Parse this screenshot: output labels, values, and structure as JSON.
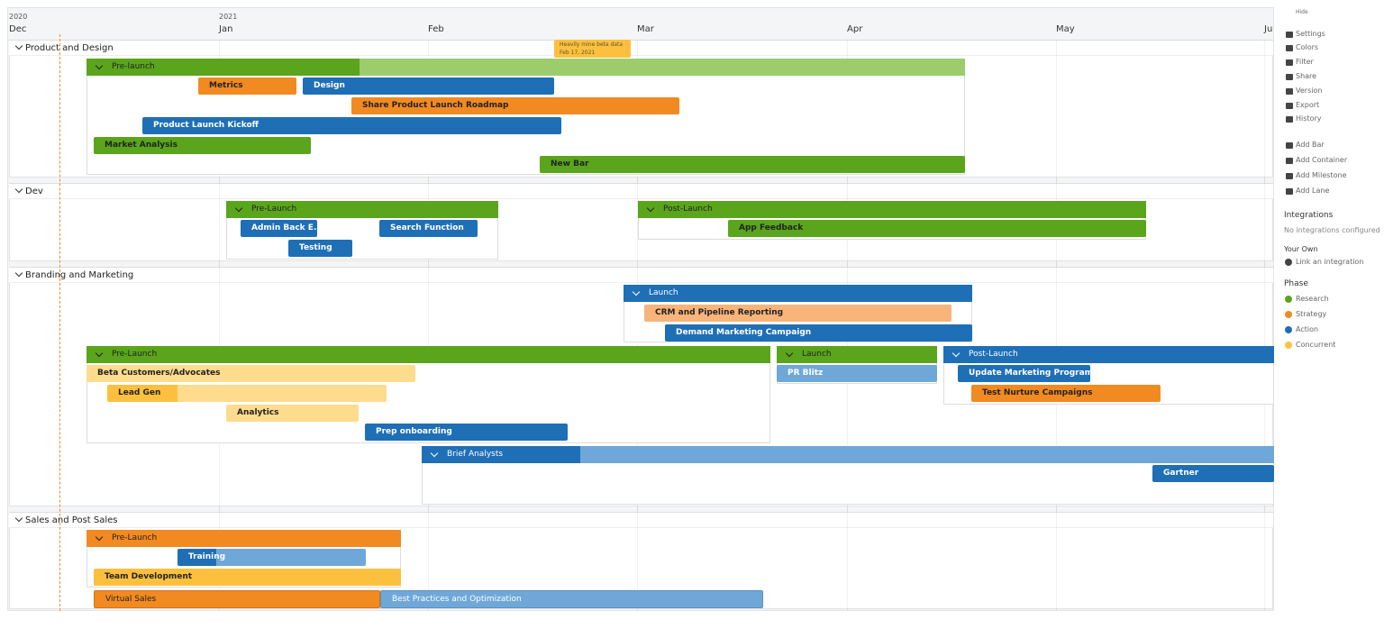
{
  "timeline": {
    "years": [
      "2020",
      "2021"
    ],
    "months": [
      "Dec",
      "Jan",
      "Feb",
      "Mar",
      "Apr",
      "May",
      "Ju"
    ]
  },
  "milestone": {
    "label": "Heavily mine beta data",
    "date": "Feb 17, 2021"
  },
  "lanes": [
    {
      "title": "Product and Design",
      "containers": [
        {
          "title": "Pre-launch",
          "bars": [
            "Metrics",
            "Design",
            "Share Product Launch Roadmap",
            "Product Launch Kickoff",
            "Market Analysis",
            "New Bar"
          ]
        }
      ],
      "bars": []
    },
    {
      "title": "Dev",
      "containers": [
        {
          "title": "Pre-Launch",
          "bars": [
            "Admin Back E...",
            "Search Function",
            "Testing"
          ]
        },
        {
          "title": "Post-Launch",
          "bars": [
            "App Feedback"
          ]
        }
      ],
      "bars": []
    },
    {
      "title": "Branding and Marketing",
      "containers": [
        {
          "title": "Launch",
          "bars": [
            "CRM and Pipeline Reporting",
            "Demand Marketing Campaign"
          ]
        },
        {
          "title": "Pre-Launch",
          "bars": [
            "Beta Customers/Advocates",
            "Lead Gen",
            "Analytics",
            "Prep onboarding"
          ]
        },
        {
          "title": "Launch",
          "bars": [
            "PR Blitz"
          ]
        },
        {
          "title": "Post-Launch",
          "bars": [
            "Update Marketing Programs",
            "Test Nurture Campaigns"
          ]
        },
        {
          "title": "Brief Analysts",
          "bars": [
            "Gartner"
          ]
        }
      ],
      "bars": []
    },
    {
      "title": "Sales and Post Sales",
      "containers": [
        {
          "title": "Pre-Launch",
          "bars": [
            "Training",
            "Team Development"
          ]
        }
      ],
      "bars": [
        "Virtual Sales",
        "Best Practices and Optimization"
      ]
    }
  ],
  "sidebar": {
    "hide": "Hide",
    "menu": [
      "Settings",
      "Colors",
      "Filter",
      "Share",
      "Version",
      "Export",
      "History"
    ],
    "add": [
      "Add Bar",
      "Add Container",
      "Add Milestone",
      "Add Lane"
    ],
    "integrations_title": "Integrations",
    "integrations_note": "No integrations configured",
    "your_own": "Your Own",
    "link": "Link an integration",
    "phase_title": "Phase",
    "phases": [
      {
        "name": "Research",
        "color": "#5aa51c"
      },
      {
        "name": "Strategy",
        "color": "#f28a22"
      },
      {
        "name": "Action",
        "color": "#1f6fb6"
      },
      {
        "name": "Concurrent",
        "color": "#fdc03e"
      }
    ]
  }
}
